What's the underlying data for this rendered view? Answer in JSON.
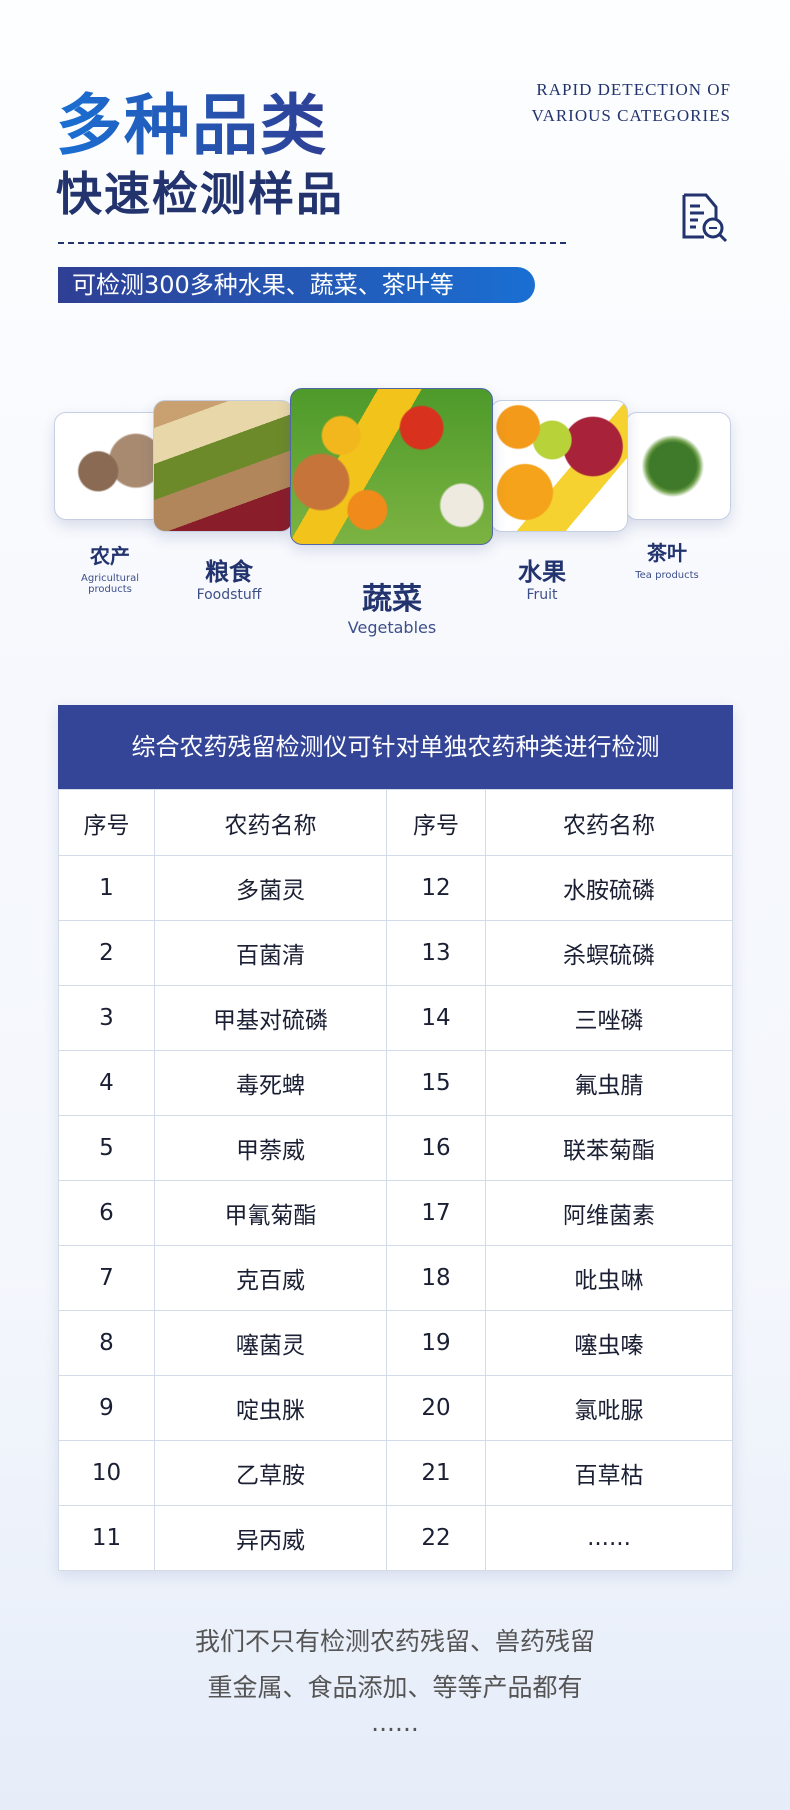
{
  "header": {
    "title_main": "多种品类",
    "title_sub": "快速检测样品",
    "english_line1": "RAPID DETECTION OF",
    "english_line2": "VARIOUS CATEGORIES",
    "pill_text": "可检测300多种水果、蔬菜、茶叶等",
    "icon": "document-search-icon"
  },
  "categories": [
    {
      "zh": "农产",
      "en": "Agricultural products"
    },
    {
      "zh": "粮食",
      "en": "Foodstuff"
    },
    {
      "zh": "蔬菜",
      "en": "Vegetables"
    },
    {
      "zh": "水果",
      "en": "Fruit"
    },
    {
      "zh": "茶叶",
      "en": "Tea products"
    }
  ],
  "table": {
    "title": "综合农药残留检测仪可针对单独农药种类进行检测",
    "columns": [
      "序号",
      "农药名称",
      "序号",
      "农药名称"
    ],
    "rows": [
      [
        "1",
        "多菌灵",
        "12",
        "水胺硫磷"
      ],
      [
        "2",
        "百菌清",
        "13",
        "杀螟硫磷"
      ],
      [
        "3",
        "甲基对硫磷",
        "14",
        "三唑磷"
      ],
      [
        "4",
        "毒死蜱",
        "15",
        "氟虫腈"
      ],
      [
        "5",
        "甲萘威",
        "16",
        "联苯菊酯"
      ],
      [
        "6",
        "甲氰菊酯",
        "17",
        "阿维菌素"
      ],
      [
        "7",
        "克百威",
        "18",
        "吡虫啉"
      ],
      [
        "8",
        "噻菌灵",
        "19",
        "噻虫嗪"
      ],
      [
        "9",
        "啶虫脒",
        "20",
        "氯吡脲"
      ],
      [
        "10",
        "乙草胺",
        "21",
        "百草枯"
      ],
      [
        "11",
        "异丙威",
        "22",
        "......"
      ]
    ]
  },
  "footer": {
    "line1": "我们不只有检测农药残留、兽药残留",
    "line2": "重金属、食品添加、等等产品都有",
    "line3": "......"
  },
  "colors": {
    "primary": "#344597",
    "accent": "#1a6fd3",
    "dark": "#22336e"
  }
}
